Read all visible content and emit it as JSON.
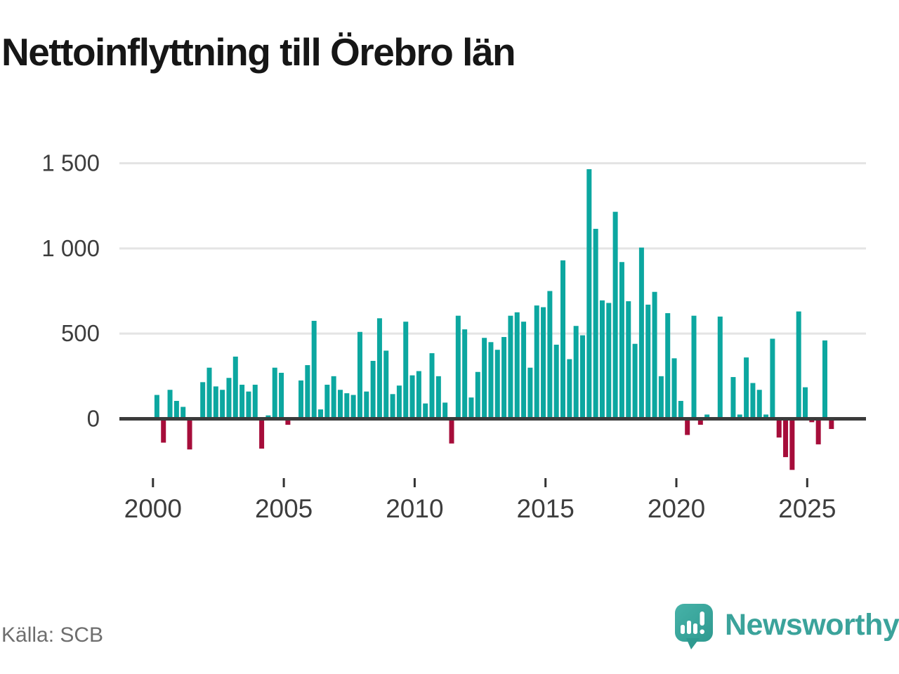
{
  "title": "Nettoinflyttning till Örebro län",
  "source": "Källa: SCB",
  "branding": {
    "name": "Newsworthy"
  },
  "colors": {
    "positive_bar": "#0ca7a0",
    "negative_bar": "#a60d3a",
    "axis_line": "#3b3b3b",
    "gridline": "#e4e4e4",
    "tick_mark": "#333333",
    "tick_label": "#3d3d3d",
    "title_text": "#161616",
    "source_text": "#6e6e6e",
    "brand_teal": "#3ba39b",
    "brand_teal_dark": "#2f9a90",
    "brand_teal_light": "#46b2a8"
  },
  "chart_data": {
    "type": "bar",
    "title": "Nettoinflyttning till Örebro län",
    "xlabel": "",
    "ylabel": "",
    "legend": "none",
    "grid": "horizontal",
    "frequency": "quarterly",
    "first_period": "2000 Q1",
    "last_period": "2025 Q4",
    "ylim": [
      -350,
      1550
    ],
    "y_ticks": [
      0,
      500,
      1000,
      1500
    ],
    "y_tick_labels": [
      "0",
      "500",
      "1 000",
      "1 500"
    ],
    "x_tick_years": [
      2000,
      2005,
      2010,
      2015,
      2020,
      2025
    ],
    "x_tick_labels": [
      "2000",
      "2005",
      "2010",
      "2015",
      "2020",
      "2025"
    ],
    "values": [
      140,
      -140,
      170,
      105,
      70,
      -180,
      0,
      215,
      300,
      190,
      170,
      240,
      365,
      200,
      160,
      200,
      -175,
      20,
      300,
      270,
      -35,
      -10,
      225,
      315,
      575,
      55,
      200,
      250,
      170,
      150,
      140,
      510,
      160,
      340,
      590,
      400,
      145,
      195,
      570,
      255,
      280,
      90,
      385,
      250,
      95,
      -145,
      605,
      525,
      125,
      275,
      475,
      450,
      405,
      480,
      605,
      625,
      570,
      300,
      665,
      655,
      750,
      435,
      930,
      350,
      545,
      490,
      1465,
      1115,
      695,
      680,
      1215,
      920,
      690,
      440,
      1005,
      670,
      745,
      250,
      620,
      355,
      105,
      -95,
      605,
      -35,
      25,
      0,
      600,
      0,
      245,
      25,
      360,
      210,
      170,
      25,
      470,
      -110,
      -225,
      -300,
      630,
      185,
      -20,
      -150,
      460,
      -60
    ]
  }
}
